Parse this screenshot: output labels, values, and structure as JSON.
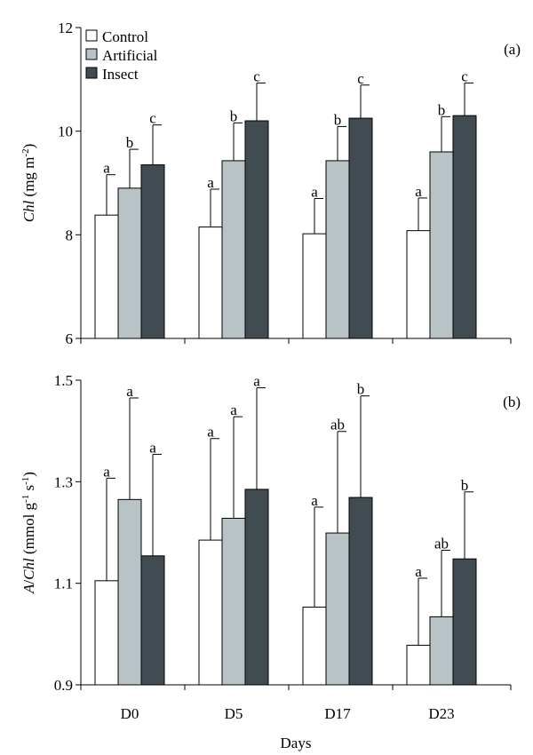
{
  "chart_data": [
    {
      "type": "bar",
      "panel_label": "(a)",
      "ylabel_italic": "Chl",
      "ylabel_rest": " (mg m",
      "ylabel_sup": "-2",
      "ylabel_end": ")",
      "ylim": [
        6,
        12
      ],
      "yticks": [
        6,
        8,
        10,
        12
      ],
      "ytick_labels": [
        "6",
        "8",
        "10",
        "12"
      ],
      "categories": [
        "D0",
        "D5",
        "D17",
        "D23"
      ],
      "legend": {
        "position": "top-left"
      },
      "series": [
        {
          "name": "Control",
          "color": "#ffffff",
          "values": [
            8.38,
            8.15,
            8.02,
            8.08
          ],
          "err": [
            0.78,
            0.73,
            0.68,
            0.63
          ],
          "letters": [
            "a",
            "a",
            "a",
            "a"
          ]
        },
        {
          "name": "Artificial",
          "color": "#b8c3c6",
          "values": [
            8.9,
            9.43,
            9.43,
            9.6
          ],
          "err": [
            0.75,
            0.73,
            0.66,
            0.68
          ],
          "letters": [
            "b",
            "b",
            "b",
            "b"
          ]
        },
        {
          "name": "Insect",
          "color": "#414b52",
          "values": [
            9.35,
            10.2,
            10.25,
            10.3
          ],
          "err": [
            0.77,
            0.73,
            0.64,
            0.63
          ],
          "letters": [
            "c",
            "c",
            "c",
            "c"
          ]
        }
      ]
    },
    {
      "type": "bar",
      "panel_label": "(b)",
      "ylabel_italic_1": "A",
      "ylabel_slash": "/",
      "ylabel_italic_2": "Chl",
      "ylabel_rest_1": " (mmol g",
      "ylabel_sup_1": "-1",
      "ylabel_rest_2": " s",
      "ylabel_sup_2": "-1",
      "ylabel_end": ")",
      "xlabel": "Days",
      "ylim": [
        0.9,
        1.5
      ],
      "yticks": [
        0.9,
        1.1,
        1.3,
        1.5
      ],
      "ytick_labels": [
        "0.9",
        "1.1",
        "1.3",
        "1.5"
      ],
      "categories": [
        "D0",
        "D5",
        "D17",
        "D23"
      ],
      "series": [
        {
          "name": "Control",
          "color": "#ffffff",
          "values": [
            1.105,
            1.185,
            1.053,
            0.978
          ],
          "err": [
            0.202,
            0.2,
            0.197,
            0.132
          ],
          "letters": [
            "a",
            "a",
            "a",
            "a"
          ]
        },
        {
          "name": "Artificial",
          "color": "#b8c3c6",
          "values": [
            1.265,
            1.228,
            1.199,
            1.034
          ],
          "err": [
            0.2,
            0.2,
            0.2,
            0.131
          ],
          "letters": [
            "a",
            "a",
            "ab",
            "ab"
          ]
        },
        {
          "name": "Insect",
          "color": "#414b52",
          "values": [
            1.154,
            1.285,
            1.269,
            1.148
          ],
          "err": [
            0.2,
            0.2,
            0.2,
            0.132
          ],
          "letters": [
            "a",
            "a",
            "b",
            "b"
          ]
        }
      ]
    }
  ]
}
